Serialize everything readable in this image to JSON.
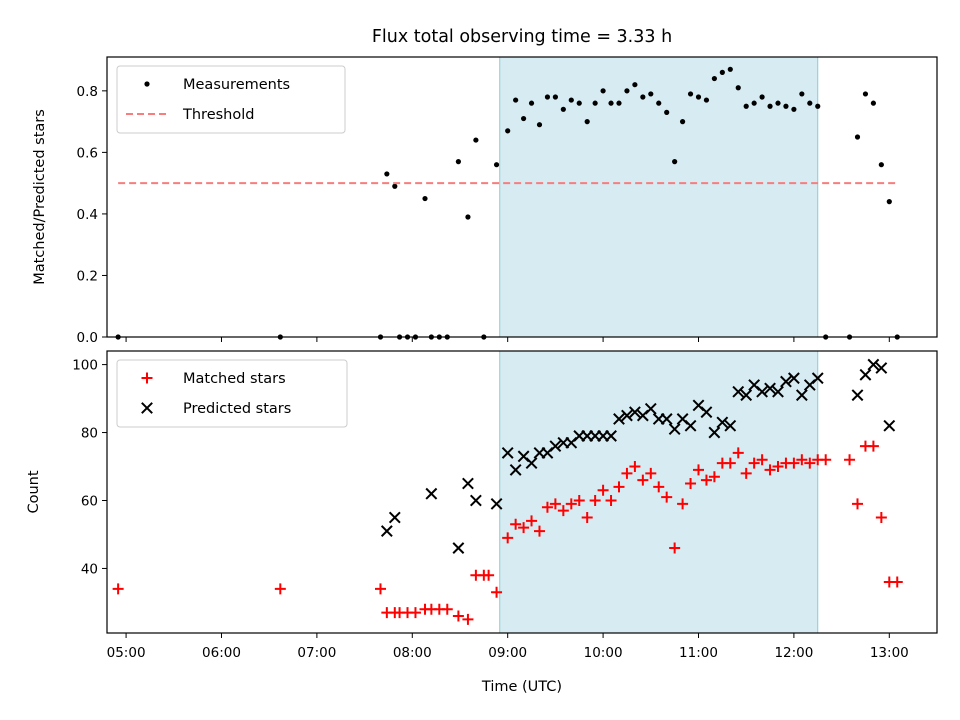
{
  "chart_data": [
    {
      "type": "scatter",
      "title": "Flux total observing time = 3.33 h",
      "xlabel": "",
      "ylabel": "Matched/Predicted stars",
      "xlim": [
        "04:48",
        "13:30"
      ],
      "ylim": [
        0,
        0.91
      ],
      "yticks": [
        "0.0",
        "0.2",
        "0.4",
        "0.6",
        "0.8"
      ],
      "shaded_interval": [
        "08:55",
        "12:15"
      ],
      "legend_position": "top-left",
      "series": [
        {
          "name": "Measurements",
          "color": "#000000",
          "marker": "dot",
          "points": [
            [
              "04:55",
              0.0
            ],
            [
              "06:37",
              0.0
            ],
            [
              "07:40",
              0.0
            ],
            [
              "07:44",
              0.53
            ],
            [
              "07:49",
              0.49
            ],
            [
              "07:52",
              0.0
            ],
            [
              "07:57",
              0.0
            ],
            [
              "08:02",
              0.0
            ],
            [
              "08:08",
              0.45
            ],
            [
              "08:12",
              0.0
            ],
            [
              "08:17",
              0.0
            ],
            [
              "08:22",
              0.0
            ],
            [
              "08:29",
              0.57
            ],
            [
              "08:35",
              0.39
            ],
            [
              "08:40",
              0.64
            ],
            [
              "08:45",
              0.0
            ],
            [
              "08:53",
              0.56
            ],
            [
              "09:00",
              0.67
            ],
            [
              "09:05",
              0.77
            ],
            [
              "09:10",
              0.71
            ],
            [
              "09:15",
              0.76
            ],
            [
              "09:20",
              0.69
            ],
            [
              "09:25",
              0.78
            ],
            [
              "09:30",
              0.78
            ],
            [
              "09:35",
              0.74
            ],
            [
              "09:40",
              0.77
            ],
            [
              "09:45",
              0.76
            ],
            [
              "09:50",
              0.7
            ],
            [
              "09:55",
              0.76
            ],
            [
              "10:00",
              0.8
            ],
            [
              "10:05",
              0.76
            ],
            [
              "10:10",
              0.76
            ],
            [
              "10:15",
              0.8
            ],
            [
              "10:20",
              0.82
            ],
            [
              "10:25",
              0.78
            ],
            [
              "10:30",
              0.79
            ],
            [
              "10:35",
              0.76
            ],
            [
              "10:40",
              0.73
            ],
            [
              "10:45",
              0.57
            ],
            [
              "10:50",
              0.7
            ],
            [
              "10:55",
              0.79
            ],
            [
              "11:00",
              0.78
            ],
            [
              "11:05",
              0.77
            ],
            [
              "11:10",
              0.84
            ],
            [
              "11:15",
              0.86
            ],
            [
              "11:20",
              0.87
            ],
            [
              "11:25",
              0.81
            ],
            [
              "11:30",
              0.75
            ],
            [
              "11:35",
              0.76
            ],
            [
              "11:40",
              0.78
            ],
            [
              "11:45",
              0.75
            ],
            [
              "11:50",
              0.76
            ],
            [
              "11:55",
              0.75
            ],
            [
              "12:00",
              0.74
            ],
            [
              "12:05",
              0.79
            ],
            [
              "12:10",
              0.76
            ],
            [
              "12:15",
              0.75
            ],
            [
              "12:20",
              0.0
            ],
            [
              "12:35",
              0.0
            ],
            [
              "12:40",
              0.65
            ],
            [
              "12:45",
              0.79
            ],
            [
              "12:50",
              0.76
            ],
            [
              "12:55",
              0.56
            ],
            [
              "13:00",
              0.44
            ],
            [
              "13:05",
              0.0
            ]
          ]
        },
        {
          "name": "Threshold",
          "color": "#f87d7d",
          "line": "dashed",
          "points": [
            [
              "04:55",
              0.5
            ],
            [
              "13:05",
              0.5
            ]
          ]
        }
      ]
    },
    {
      "type": "scatter",
      "title": "",
      "xlabel": "Time (UTC)",
      "ylabel": "Count",
      "xlim": [
        "04:48",
        "13:30"
      ],
      "ylim": [
        21,
        104
      ],
      "yticks": [
        "40",
        "60",
        "80",
        "100"
      ],
      "xticks": [
        "05:00",
        "06:00",
        "07:00",
        "08:00",
        "09:00",
        "10:00",
        "11:00",
        "12:00",
        "13:00"
      ],
      "shaded_interval": [
        "08:55",
        "12:15"
      ],
      "legend_position": "top-left",
      "series": [
        {
          "name": "Matched stars",
          "color": "#ff0000",
          "marker": "plus",
          "points": [
            [
              "04:55",
              34
            ],
            [
              "06:37",
              34
            ],
            [
              "07:40",
              34
            ],
            [
              "07:44",
              27
            ],
            [
              "07:49",
              27
            ],
            [
              "07:52",
              27
            ],
            [
              "07:57",
              27
            ],
            [
              "08:02",
              27
            ],
            [
              "08:08",
              28
            ],
            [
              "08:12",
              28
            ],
            [
              "08:17",
              28
            ],
            [
              "08:22",
              28
            ],
            [
              "08:29",
              26
            ],
            [
              "08:35",
              25
            ],
            [
              "08:40",
              38
            ],
            [
              "08:45",
              38
            ],
            [
              "08:48",
              38
            ],
            [
              "08:53",
              33
            ],
            [
              "09:00",
              49
            ],
            [
              "09:05",
              53
            ],
            [
              "09:10",
              52
            ],
            [
              "09:15",
              54
            ],
            [
              "09:20",
              51
            ],
            [
              "09:25",
              58
            ],
            [
              "09:30",
              59
            ],
            [
              "09:35",
              57
            ],
            [
              "09:40",
              59
            ],
            [
              "09:45",
              60
            ],
            [
              "09:50",
              55
            ],
            [
              "09:55",
              60
            ],
            [
              "10:00",
              63
            ],
            [
              "10:05",
              60
            ],
            [
              "10:10",
              64
            ],
            [
              "10:15",
              68
            ],
            [
              "10:20",
              70
            ],
            [
              "10:25",
              66
            ],
            [
              "10:30",
              68
            ],
            [
              "10:35",
              64
            ],
            [
              "10:40",
              61
            ],
            [
              "10:45",
              46
            ],
            [
              "10:50",
              59
            ],
            [
              "10:55",
              65
            ],
            [
              "11:00",
              69
            ],
            [
              "11:05",
              66
            ],
            [
              "11:10",
              67
            ],
            [
              "11:15",
              71
            ],
            [
              "11:20",
              71
            ],
            [
              "11:25",
              74
            ],
            [
              "11:30",
              68
            ],
            [
              "11:35",
              71
            ],
            [
              "11:40",
              72
            ],
            [
              "11:45",
              69
            ],
            [
              "11:50",
              70
            ],
            [
              "11:55",
              71
            ],
            [
              "12:00",
              71
            ],
            [
              "12:05",
              72
            ],
            [
              "12:10",
              71
            ],
            [
              "12:15",
              72
            ],
            [
              "12:20",
              72
            ],
            [
              "12:35",
              72
            ],
            [
              "12:40",
              59
            ],
            [
              "12:45",
              76
            ],
            [
              "12:50",
              76
            ],
            [
              "12:55",
              55
            ],
            [
              "13:00",
              36
            ],
            [
              "13:05",
              36
            ]
          ]
        },
        {
          "name": "Predicted stars",
          "color": "#000000",
          "marker": "x",
          "points": [
            [
              "07:44",
              51
            ],
            [
              "07:49",
              55
            ],
            [
              "08:12",
              62
            ],
            [
              "08:29",
              46
            ],
            [
              "08:35",
              65
            ],
            [
              "08:40",
              60
            ],
            [
              "08:53",
              59
            ],
            [
              "09:00",
              74
            ],
            [
              "09:05",
              69
            ],
            [
              "09:10",
              73
            ],
            [
              "09:15",
              71
            ],
            [
              "09:20",
              74
            ],
            [
              "09:25",
              74
            ],
            [
              "09:30",
              76
            ],
            [
              "09:35",
              77
            ],
            [
              "09:40",
              77
            ],
            [
              "09:45",
              79
            ],
            [
              "09:50",
              79
            ],
            [
              "09:55",
              79
            ],
            [
              "10:00",
              79
            ],
            [
              "10:05",
              79
            ],
            [
              "10:10",
              84
            ],
            [
              "10:15",
              85
            ],
            [
              "10:20",
              86
            ],
            [
              "10:25",
              85
            ],
            [
              "10:30",
              87
            ],
            [
              "10:35",
              84
            ],
            [
              "10:40",
              84
            ],
            [
              "10:45",
              81
            ],
            [
              "10:50",
              84
            ],
            [
              "10:55",
              82
            ],
            [
              "11:00",
              88
            ],
            [
              "11:05",
              86
            ],
            [
              "11:10",
              80
            ],
            [
              "11:15",
              83
            ],
            [
              "11:20",
              82
            ],
            [
              "11:25",
              92
            ],
            [
              "11:30",
              91
            ],
            [
              "11:35",
              94
            ],
            [
              "11:40",
              92
            ],
            [
              "11:45",
              93
            ],
            [
              "11:50",
              92
            ],
            [
              "11:55",
              95
            ],
            [
              "12:00",
              96
            ],
            [
              "12:05",
              91
            ],
            [
              "12:10",
              94
            ],
            [
              "12:15",
              96
            ],
            [
              "12:40",
              91
            ],
            [
              "12:45",
              97
            ],
            [
              "12:50",
              100
            ],
            [
              "12:55",
              99
            ],
            [
              "13:00",
              82
            ]
          ]
        }
      ]
    }
  ]
}
